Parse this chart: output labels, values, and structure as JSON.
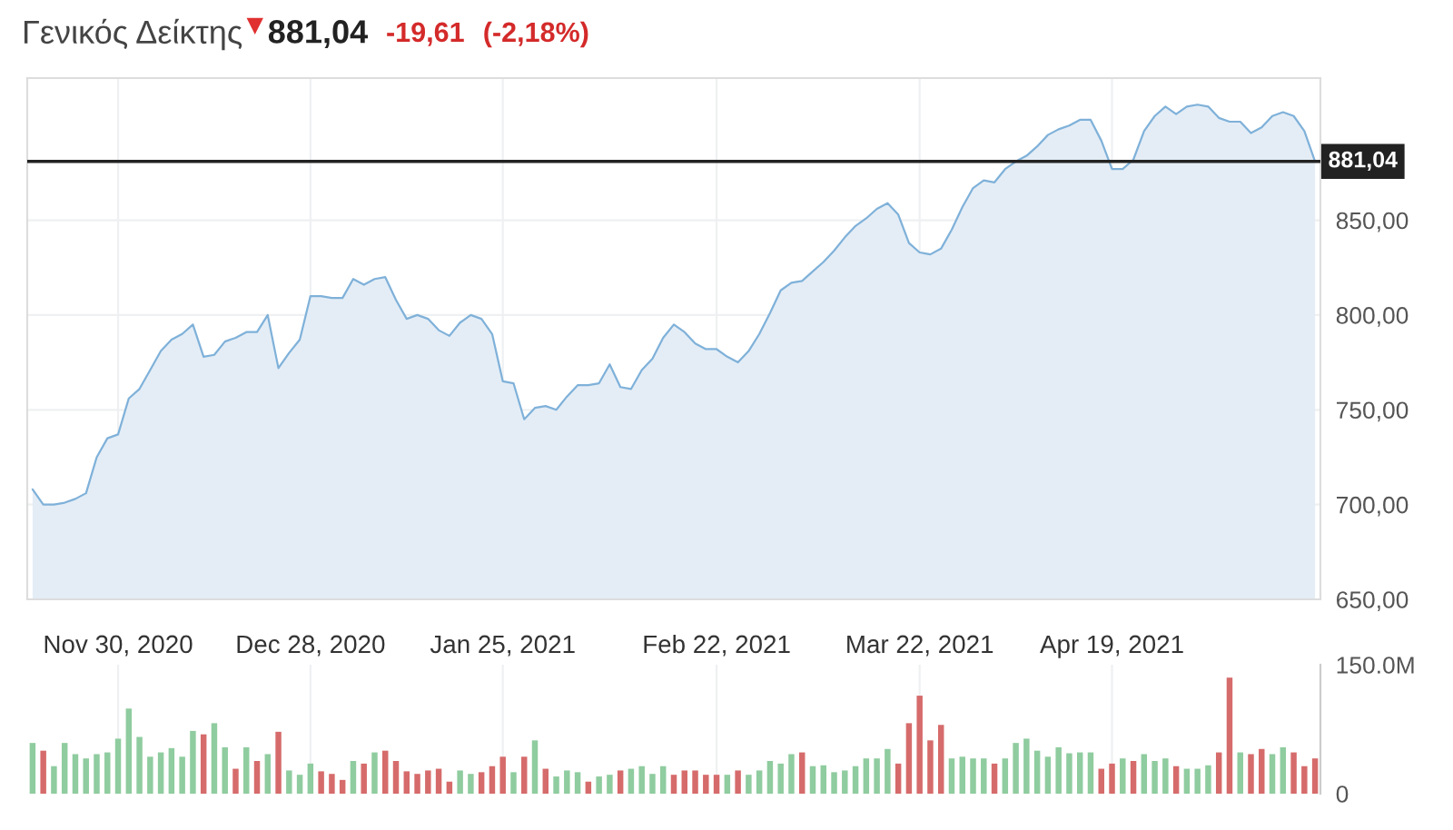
{
  "chart_data": [
    {
      "type": "area",
      "title": "Γενικός Δείκτης",
      "annotations": [
        "881,04",
        "-19,61",
        "(-2,18%)"
      ],
      "categories": [
        null,
        null,
        null,
        null,
        null,
        null,
        null,
        null,
        "Nov 30, 2020",
        null,
        null,
        null,
        null,
        null,
        null,
        null,
        null,
        null,
        null,
        null,
        null,
        null,
        null,
        null,
        null,
        null,
        "Dec 28, 2020",
        null,
        null,
        null,
        null,
        null,
        null,
        null,
        null,
        null,
        null,
        null,
        null,
        null,
        null,
        null,
        null,
        null,
        "Jan 25, 2021",
        null,
        null,
        null,
        null,
        null,
        null,
        null,
        null,
        null,
        null,
        null,
        null,
        null,
        null,
        null,
        null,
        null,
        null,
        null,
        "Feb 22, 2021",
        null,
        null,
        null,
        null,
        null,
        null,
        null,
        null,
        null,
        null,
        null,
        null,
        null,
        null,
        null,
        null,
        null,
        null,
        "Mar 22, 2021",
        null,
        null,
        null,
        null,
        null,
        null,
        null,
        null,
        null,
        null,
        null,
        null,
        null,
        null,
        null,
        null,
        null,
        "Apr 19, 2021",
        null,
        null,
        null,
        null,
        null,
        null,
        null,
        null,
        null,
        null,
        null,
        null,
        null,
        null,
        null,
        null,
        null,
        null,
        null
      ],
      "series": [
        {
          "color": "#7fb1d9",
          "values": [
            708,
            700,
            700,
            701,
            703,
            706,
            725,
            735,
            737,
            756,
            761,
            771,
            781,
            787,
            790,
            795,
            778,
            779,
            786,
            788,
            791,
            791,
            800,
            772,
            780,
            787,
            810,
            810,
            809,
            809,
            819,
            816,
            819,
            820,
            808,
            798,
            800,
            798,
            792,
            789,
            796,
            800,
            798,
            790,
            765,
            764,
            745,
            751,
            752,
            750,
            757,
            763,
            763,
            764,
            774,
            762,
            761,
            771,
            777,
            788,
            795,
            791,
            785,
            782,
            782,
            778,
            775,
            781,
            790,
            801,
            813,
            817,
            818,
            823,
            828,
            834,
            841,
            847,
            851,
            856,
            859,
            853,
            838,
            833,
            832,
            835,
            845,
            857,
            867,
            871,
            870,
            877,
            881,
            884,
            889,
            895,
            898,
            900,
            903,
            903,
            892,
            877,
            877,
            882,
            897,
            905,
            910,
            906,
            910,
            911,
            910,
            904,
            902,
            902,
            896,
            899,
            905,
            907,
            905,
            897,
            881.04
          ]
        }
      ],
      "ylim": [
        650,
        925
      ],
      "yticks": [
        {
          "value": 650,
          "label": "650,00"
        },
        {
          "value": 700,
          "label": "700,00"
        },
        {
          "value": 750,
          "label": "750,00"
        },
        {
          "value": 800,
          "label": "800,00"
        },
        {
          "value": 850,
          "label": "850,00"
        }
      ],
      "ref_lines": [
        {
          "axis": "y",
          "value": 881.04,
          "label": "881,04",
          "color": "#222222"
        }
      ],
      "grid": true,
      "legend": false
    },
    {
      "type": "bar",
      "categories": [
        null,
        null,
        null,
        null,
        null,
        null,
        null,
        null,
        null,
        null,
        null,
        null,
        null,
        null,
        null,
        null,
        null,
        null,
        null,
        null,
        null,
        null,
        null,
        null,
        null,
        null,
        null,
        null,
        null,
        null,
        null,
        null,
        null,
        null,
        null,
        null,
        null,
        null,
        null,
        null,
        null,
        null,
        null,
        null,
        null,
        null,
        null,
        null,
        null,
        null,
        null,
        null,
        null,
        null,
        null,
        null,
        null,
        null,
        null,
        null,
        null,
        null,
        null,
        null,
        null,
        null,
        null,
        null,
        null,
        null,
        null,
        null,
        null,
        null,
        null,
        null,
        null,
        null,
        null,
        null,
        null,
        null,
        null,
        null,
        null,
        null,
        null,
        null,
        null,
        null,
        null,
        null,
        null,
        null,
        null,
        null,
        null,
        null,
        null,
        null,
        null,
        null,
        null,
        null,
        null,
        null,
        null,
        null,
        null,
        null,
        null,
        null,
        null,
        null,
        null,
        null,
        null,
        null,
        null,
        null,
        null
      ],
      "values": [
        59,
        50,
        32,
        59,
        46,
        41,
        46,
        48,
        64,
        99,
        66,
        43,
        48,
        53,
        43,
        73,
        69,
        82,
        54,
        29,
        54,
        38,
        46,
        72,
        27,
        22,
        35,
        26,
        23,
        16,
        38,
        35,
        48,
        50,
        38,
        26,
        23,
        27,
        29,
        14,
        27,
        23,
        25,
        32,
        43,
        25,
        43,
        62,
        29,
        20,
        27,
        25,
        14,
        20,
        22,
        27,
        29,
        32,
        23,
        32,
        22,
        27,
        27,
        22,
        22,
        22,
        27,
        22,
        27,
        38,
        35,
        46,
        48,
        32,
        33,
        25,
        27,
        32,
        41,
        41,
        52,
        35,
        82,
        114,
        62,
        80,
        41,
        43,
        41,
        41,
        35,
        41,
        59,
        64,
        50,
        43,
        54,
        47,
        48,
        48,
        29,
        35,
        41,
        38,
        46,
        38,
        41,
        32,
        29,
        29,
        33,
        48,
        135,
        48,
        46,
        52,
        46,
        54,
        48,
        32,
        41
      ],
      "colors": [
        "#8fcc9f",
        "#d66b6b",
        "#8fcc9f",
        "#8fcc9f",
        "#8fcc9f",
        "#8fcc9f",
        "#8fcc9f",
        "#8fcc9f",
        "#8fcc9f",
        "#8fcc9f",
        "#8fcc9f",
        "#8fcc9f",
        "#8fcc9f",
        "#8fcc9f",
        "#8fcc9f",
        "#8fcc9f",
        "#d66b6b",
        "#8fcc9f",
        "#8fcc9f",
        "#d66b6b",
        "#8fcc9f",
        "#d66b6b",
        "#8fcc9f",
        "#d66b6b",
        "#8fcc9f",
        "#8fcc9f",
        "#8fcc9f",
        "#d66b6b",
        "#d66b6b",
        "#d66b6b",
        "#8fcc9f",
        "#d66b6b",
        "#8fcc9f",
        "#d66b6b",
        "#d66b6b",
        "#d66b6b",
        "#d66b6b",
        "#d66b6b",
        "#d66b6b",
        "#d66b6b",
        "#8fcc9f",
        "#8fcc9f",
        "#d66b6b",
        "#d66b6b",
        "#d66b6b",
        "#8fcc9f",
        "#d66b6b",
        "#8fcc9f",
        "#d66b6b",
        "#8fcc9f",
        "#8fcc9f",
        "#8fcc9f",
        "#d66b6b",
        "#8fcc9f",
        "#8fcc9f",
        "#d66b6b",
        "#8fcc9f",
        "#8fcc9f",
        "#8fcc9f",
        "#8fcc9f",
        "#d66b6b",
        "#d66b6b",
        "#d66b6b",
        "#d66b6b",
        "#d66b6b",
        "#8fcc9f",
        "#d66b6b",
        "#8fcc9f",
        "#8fcc9f",
        "#8fcc9f",
        "#8fcc9f",
        "#8fcc9f",
        "#d66b6b",
        "#8fcc9f",
        "#8fcc9f",
        "#8fcc9f",
        "#8fcc9f",
        "#8fcc9f",
        "#8fcc9f",
        "#8fcc9f",
        "#8fcc9f",
        "#d66b6b",
        "#d66b6b",
        "#d66b6b",
        "#d66b6b",
        "#d66b6b",
        "#8fcc9f",
        "#8fcc9f",
        "#8fcc9f",
        "#8fcc9f",
        "#d66b6b",
        "#8fcc9f",
        "#8fcc9f",
        "#8fcc9f",
        "#8fcc9f",
        "#8fcc9f",
        "#8fcc9f",
        "#8fcc9f",
        "#8fcc9f",
        "#8fcc9f",
        "#d66b6b",
        "#d66b6b",
        "#8fcc9f",
        "#d66b6b",
        "#8fcc9f",
        "#8fcc9f",
        "#8fcc9f",
        "#d66b6b",
        "#8fcc9f",
        "#8fcc9f",
        "#8fcc9f",
        "#d66b6b",
        "#d66b6b",
        "#8fcc9f",
        "#d66b6b",
        "#d66b6b",
        "#8fcc9f",
        "#8fcc9f",
        "#d66b6b",
        "#d66b6b",
        "#d66b6b"
      ],
      "ylim": [
        0,
        150
      ],
      "yticks": [
        0,
        {
          "value": 150,
          "label": "150.0M"
        }
      ],
      "tick_labels": "y",
      "grid": "x",
      "legend": false
    }
  ]
}
